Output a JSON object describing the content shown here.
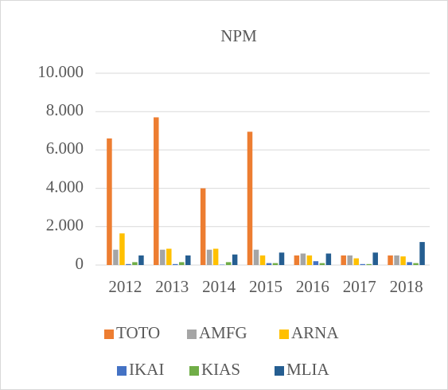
{
  "chart_data": {
    "type": "bar",
    "title": "NPM",
    "categories": [
      "2012",
      "2013",
      "2014",
      "2015",
      "2016",
      "2017",
      "2018"
    ],
    "series": [
      {
        "name": "TOTO",
        "color": "#ed7d31",
        "values": [
          6.6,
          7.7,
          4.0,
          6.95,
          0.5,
          0.5,
          0.5
        ]
      },
      {
        "name": "AMFG",
        "color": "#a5a5a5",
        "values": [
          0.8,
          0.8,
          0.8,
          0.8,
          0.6,
          0.5,
          0.5
        ]
      },
      {
        "name": "ARNA",
        "color": "#ffc000",
        "values": [
          1.65,
          0.85,
          0.85,
          0.5,
          0.5,
          0.35,
          0.45
        ]
      },
      {
        "name": "IKAI",
        "color": "#4472c4",
        "values": [
          0.05,
          0.05,
          0.02,
          0.1,
          0.2,
          0.05,
          0.15
        ]
      },
      {
        "name": "KIAS",
        "color": "#70ad47",
        "values": [
          0.15,
          0.15,
          0.15,
          0.1,
          0.1,
          0.05,
          0.1
        ]
      },
      {
        "name": "MLIA",
        "color": "#255e91",
        "values": [
          0.5,
          0.5,
          0.55,
          0.65,
          0.6,
          0.65,
          1.2
        ]
      }
    ],
    "ylim": [
      0,
      10
    ],
    "yticks": [
      0,
      {
        "value": 2,
        "label": "2.000"
      },
      {
        "value": 4,
        "label": "4.000"
      },
      {
        "value": 6,
        "label": "6.000"
      },
      {
        "value": 8,
        "label": "8.000"
      },
      {
        "value": 10,
        "label": "10.000"
      }
    ],
    "grid": true,
    "legend": "bottom"
  }
}
